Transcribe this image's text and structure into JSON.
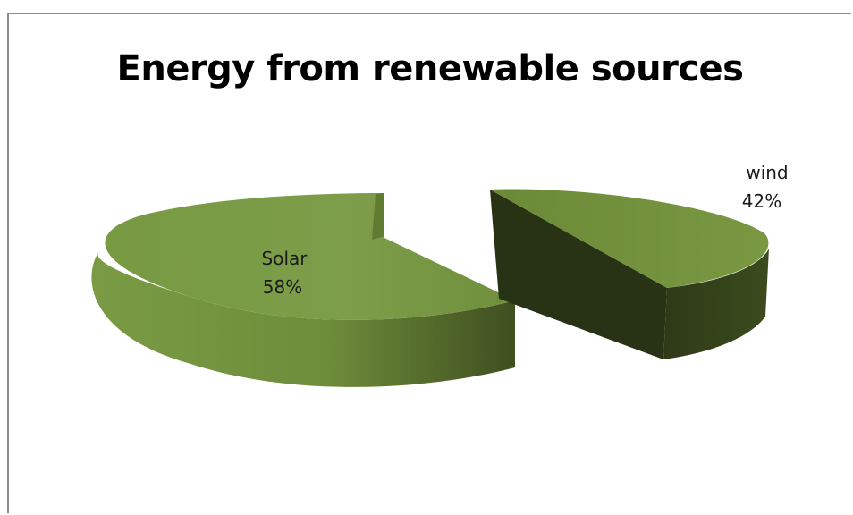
{
  "chart_data": {
    "type": "pie",
    "title": "Energy from renewable sources",
    "categories": [
      "Solar",
      "wind"
    ],
    "values": [
      58,
      42
    ],
    "data_labels": [
      {
        "name": "Solar",
        "value": "58%"
      },
      {
        "name": "wind",
        "value": "42%"
      }
    ],
    "legend": "none",
    "style": "3d-exploded",
    "colors": {
      "top": "#76923c",
      "side_dark": "#4f6228",
      "side_darker": "#2e3a17"
    }
  }
}
